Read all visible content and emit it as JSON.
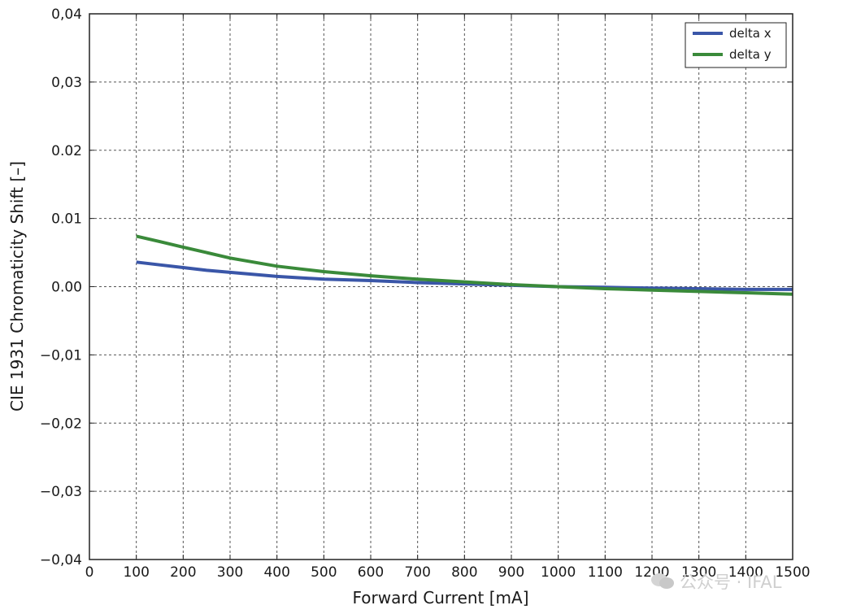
{
  "chart_data": {
    "type": "line",
    "title": "",
    "xlabel": "Forward Current [mA]",
    "ylabel": "CIE 1931 Chromaticity Shift  [–]",
    "xlim": [
      0,
      1500
    ],
    "ylim": [
      -0.04,
      0.04
    ],
    "x_ticks": [
      0,
      100,
      200,
      300,
      400,
      500,
      600,
      700,
      800,
      900,
      1000,
      1100,
      1200,
      1300,
      1400,
      1500
    ],
    "x_tick_labels": [
      "0",
      "100",
      "200",
      "300",
      "400",
      "500",
      "600",
      "700",
      "800",
      "900",
      "1000",
      "1100",
      "1200",
      "1300",
      "1400",
      "1500"
    ],
    "y_ticks": [
      -0.04,
      -0.03,
      -0.02,
      -0.01,
      0.0,
      0.01,
      0.02,
      0.03,
      0.04
    ],
    "y_tick_labels": [
      "−0,04",
      "−0,03",
      "−0,02",
      "−0,01",
      "0.00",
      "0.01",
      "0.02",
      "0,03",
      "0,04"
    ],
    "grid": true,
    "legend_position": "top-right",
    "series": [
      {
        "name": "delta x",
        "color": "#3a56a8",
        "x": [
          100,
          150,
          200,
          250,
          300,
          350,
          400,
          450,
          500,
          600,
          700,
          800,
          900,
          1000,
          1100,
          1200,
          1300,
          1400,
          1500
        ],
        "y": [
          0.0036,
          0.0032,
          0.0028,
          0.0024,
          0.0021,
          0.0018,
          0.0015,
          0.0013,
          0.0011,
          0.0009,
          0.0006,
          0.0004,
          0.0002,
          0.0,
          -0.0001,
          -0.0002,
          -0.0003,
          -0.0004,
          -0.0004
        ]
      },
      {
        "name": "delta y",
        "color": "#3a8a3a",
        "x": [
          100,
          150,
          200,
          250,
          300,
          350,
          400,
          450,
          500,
          600,
          700,
          800,
          900,
          1000,
          1100,
          1200,
          1300,
          1400,
          1500
        ],
        "y": [
          0.0074,
          0.0066,
          0.0058,
          0.005,
          0.0042,
          0.0036,
          0.003,
          0.0026,
          0.0022,
          0.0016,
          0.0011,
          0.0007,
          0.0003,
          0.0,
          -0.0003,
          -0.0005,
          -0.0007,
          -0.0009,
          -0.0011
        ]
      }
    ]
  },
  "watermark": {
    "text": "公众号 · IFAL",
    "icon": "wechat-icon"
  }
}
